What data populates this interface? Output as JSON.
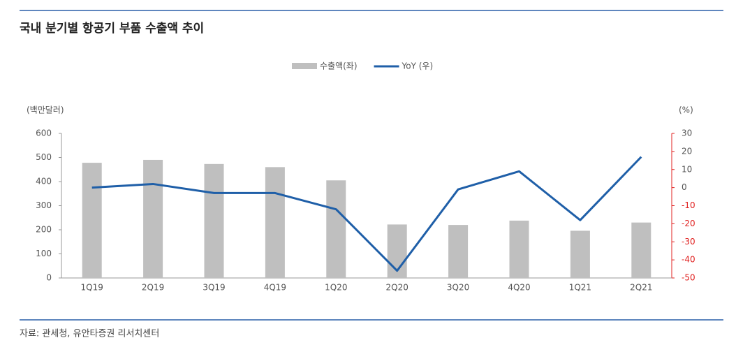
{
  "chart_data": {
    "type": "combo",
    "title": "국내 분기별 항공기 부품 수출액 추이",
    "y_label": "(백만달러)",
    "y2_label": "(%)",
    "categories": [
      "1Q19",
      "2Q19",
      "3Q19",
      "4Q19",
      "1Q20",
      "2Q20",
      "3Q20",
      "4Q20",
      "1Q21",
      "2Q21"
    ],
    "series": [
      {
        "name": "수출액(좌)",
        "type": "bar",
        "color": "#bfbfbf",
        "values": [
          478,
          490,
          473,
          460,
          405,
          222,
          220,
          238,
          196,
          230
        ]
      },
      {
        "name": "YoY (우)",
        "type": "line",
        "axis": "y2",
        "color": "#1f5fa8",
        "values": [
          0,
          2,
          -3,
          -3,
          -12,
          -46,
          -1,
          9,
          -18,
          17
        ]
      }
    ],
    "ylim": [
      0,
      600
    ],
    "yticks": [
      0,
      100,
      200,
      300,
      400,
      500,
      600
    ],
    "y2lim": [
      -50,
      30
    ],
    "y2ticks": [
      -50,
      -40,
      -30,
      -20,
      -10,
      0,
      10,
      20,
      30
    ],
    "y2_negative_color": "#e0201f",
    "source": "자료: 관세청, 유안타증권 리서치센터"
  }
}
